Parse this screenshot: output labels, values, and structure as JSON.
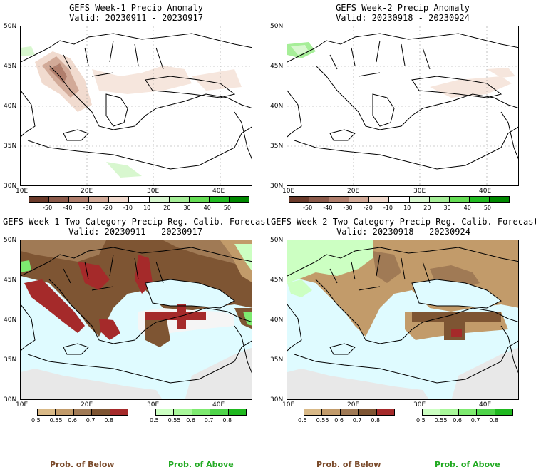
{
  "panels": [
    {
      "title_line1": "GEFS Week-1 Precip Anomaly",
      "title_line2": "Valid: 20230911 - 20230917"
    },
    {
      "title_line1": "GEFS Week-2 Precip Anomaly",
      "title_line2": "Valid: 20230918 - 20230924"
    },
    {
      "title_line1": "GEFS Week-1 Two-Category Precip Reg. Calib. Forecast",
      "title_line2": "Valid: 20230911 - 20230917"
    },
    {
      "title_line1": "GEFS Week-2 Two-Category Precip Reg. Calib. Forecast",
      "title_line2": "Valid: 20230918 - 20230924"
    }
  ],
  "lat_labels": [
    "50N",
    "45N",
    "40N",
    "35N",
    "30N"
  ],
  "lon_labels": [
    "10E",
    "20E",
    "30E",
    "40E"
  ],
  "anomaly_colorbar": {
    "labels": [
      "-50",
      "-40",
      "-30",
      "-20",
      "-10",
      "10",
      "20",
      "30",
      "40",
      "50"
    ],
    "colors": [
      "#6b3a2a",
      "#8c5a4a",
      "#b07e6c",
      "#d2aa98",
      "#f1dbcf",
      "#ffffff",
      "#d8f7cf",
      "#a6ee98",
      "#66dd55",
      "#22bb22",
      "#008800"
    ]
  },
  "below_colorbar": {
    "labels": [
      "0.5",
      "0.55",
      "0.6",
      "0.7",
      "0.8"
    ],
    "colors": [
      "#d9b987",
      "#c29b6a",
      "#a07a55",
      "#7e5533",
      "#a52a2a"
    ]
  },
  "above_colorbar": {
    "labels": [
      "0.5",
      "0.55",
      "0.6",
      "0.7",
      "0.8"
    ],
    "colors": [
      "#ccffc2",
      "#a8f79a",
      "#7eea70",
      "#4fd44a",
      "#1fb81f"
    ]
  },
  "legend": {
    "below_text": "Prob. of Below",
    "above_text": "Prob. of Above",
    "below_color": "#7a4a2a",
    "above_color": "#22aa22"
  },
  "colors": {
    "sea_light_blue": "#dffbff",
    "no_data_gray": "#e8e8e8"
  }
}
